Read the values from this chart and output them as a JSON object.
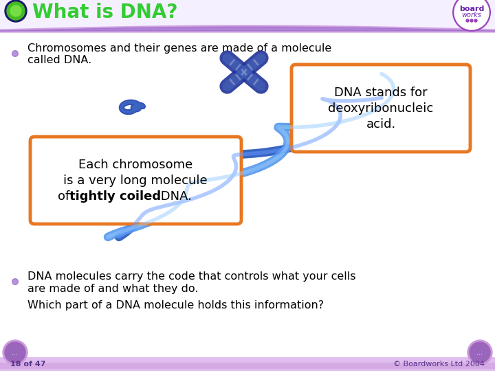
{
  "title": "What is DNA?",
  "title_color": "#33CC33",
  "title_fontsize": 20,
  "bg_color": "#FFFFFF",
  "header_bar_color": "#9966CC",
  "bullet1_line1": "Chromosomes and their genes are made of a molecule",
  "bullet1_line2": "called DNA.",
  "bullet2_line1": "DNA molecules carry the code that controls what your cells",
  "bullet2_line2": "are made of and what they do.",
  "bullet3": "Which part of a DNA molecule holds this information?",
  "box1_line1": "DNA stands for",
  "box1_line2": "deoxyribonucleic",
  "box1_line3": "acid.",
  "box2_line1": "Each chromosome",
  "box2_line2": "is a very long molecule",
  "box2_line3a": "of ",
  "box2_line3b": "tightly coiled",
  "box2_line3c": " DNA.",
  "box_border_color": "#E87722",
  "box_bg_color": "#FFFFFF",
  "footer_text": "18 of 47",
  "copyright_text": "© Boardworks Ltd 2004",
  "bullet_color": "#9966CC",
  "text_color": "#000000",
  "purple_bar_color": "#AA77CC",
  "footer_bar_color": "#CC99DD"
}
